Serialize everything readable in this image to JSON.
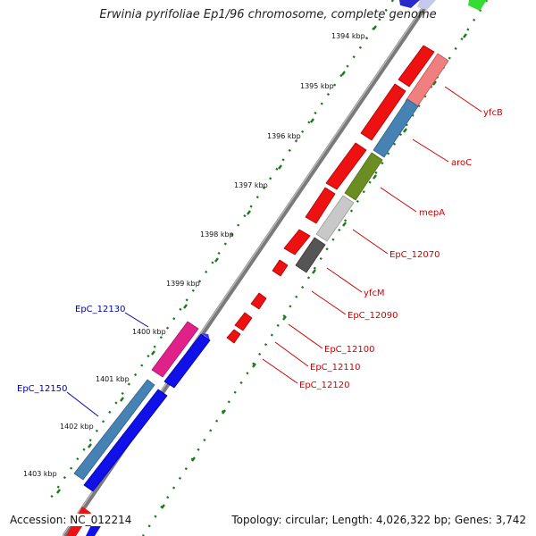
{
  "title": "Erwinia pyrifoliae Ep1/96 chromosome, complete genome",
  "footer": {
    "accession": "Accession: NC_012214",
    "topology": "Topology: circular; Length: 4,026,322 bp; Genes: 3,742"
  },
  "kbp_ticks": [
    {
      "label": "1394 kbp"
    },
    {
      "label": "1395 kbp"
    },
    {
      "label": "1396 kbp"
    },
    {
      "label": "1397 kbp"
    },
    {
      "label": "1398 kbp"
    },
    {
      "label": "1399 kbp"
    },
    {
      "label": "1400 kbp"
    },
    {
      "label": "1401 kbp"
    },
    {
      "label": "1402 kbp"
    },
    {
      "label": "1403 kbp"
    }
  ],
  "gene_labels": {
    "right": [
      {
        "text": "yfcB"
      },
      {
        "text": "aroC"
      },
      {
        "text": "mepA"
      },
      {
        "text": "EpC_12070"
      },
      {
        "text": "yfcM"
      },
      {
        "text": "EpC_12090"
      },
      {
        "text": "EpC_12100"
      },
      {
        "text": "EpC_12110"
      },
      {
        "text": "EpC_12120"
      }
    ],
    "left": [
      {
        "text": "EpC_12130"
      },
      {
        "text": "EpC_12150"
      }
    ]
  },
  "colors": {
    "backbone": "#7a7a7a",
    "tick_green": "#1a7a1a",
    "red_feature": "#ee1111",
    "blue_feature": "#1010e8",
    "steel_blue": "#4682b4",
    "olive": "#6b8e23",
    "light_red": "#f08080",
    "light_gray": "#c8c8c8",
    "dark_gray": "#555555",
    "magenta": "#e0218a",
    "green": "#33dd33",
    "label_red": "#cc0000",
    "label_blue": "#0000aa"
  }
}
